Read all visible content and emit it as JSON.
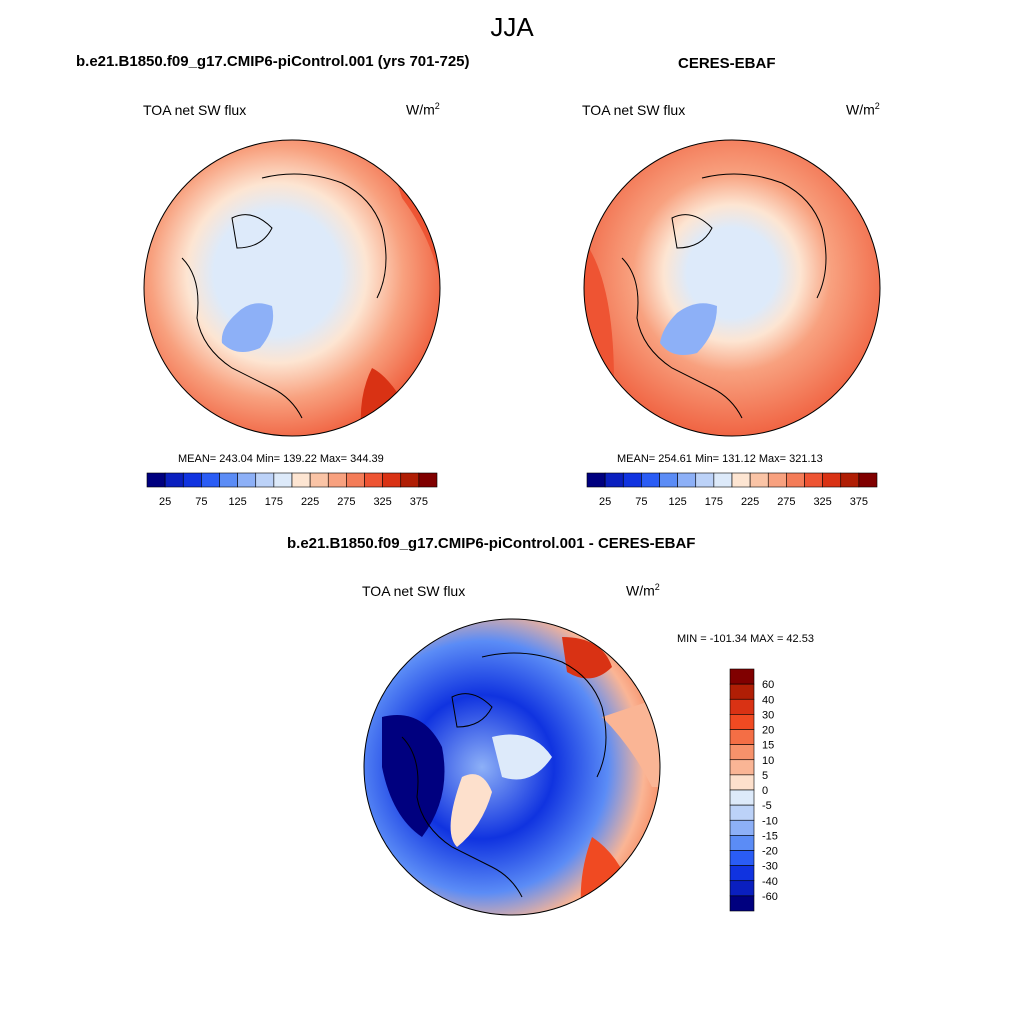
{
  "figure": {
    "title": "JJA"
  },
  "panels": [
    {
      "id": "model",
      "heading": "b.e21.B1850.f09_g17.CMIP6-piControl.001 (yrs 701-725)",
      "variable": "TOA net SW flux",
      "units_base": "W/m",
      "units_exp": "2",
      "stats": "MEAN= 243.04  Min= 139.22  Max= 344.39"
    },
    {
      "id": "obs",
      "heading": "CERES-EBAF",
      "variable": "TOA net SW flux",
      "units_base": "W/m",
      "units_exp": "2",
      "stats": "MEAN= 254.61  Min= 131.12  Max= 321.13"
    },
    {
      "id": "diff",
      "heading": "b.e21.B1850.f09_g17.CMIP6-piControl.001 - CERES-EBAF",
      "variable": "TOA net SW flux",
      "units_base": "W/m",
      "units_exp": "2",
      "stats": "MIN = -101.34 MAX =  42.53"
    }
  ],
  "colorbar_top": {
    "tick_labels": [
      "25",
      "75",
      "125",
      "175",
      "225",
      "275",
      "325",
      "375"
    ],
    "colors": [
      "#00007f",
      "#0a1fbf",
      "#1033e0",
      "#2a5cf5",
      "#5b8cf6",
      "#8db0f7",
      "#bcd2f8",
      "#ddeafa",
      "#fde5d2",
      "#fac4a6",
      "#f8a17f",
      "#f47c58",
      "#ee5433",
      "#d93214",
      "#b01e05",
      "#800000"
    ]
  },
  "colorbar_diff": {
    "tick_labels": [
      "60",
      "40",
      "30",
      "20",
      "15",
      "10",
      "5",
      "0",
      "-5",
      "-10",
      "-15",
      "-20",
      "-30",
      "-40",
      "-60"
    ],
    "colors": [
      "#800000",
      "#b01e05",
      "#d93214",
      "#f04a22",
      "#f46e45",
      "#f7926b",
      "#fab595",
      "#fde0cc",
      "#ddeafa",
      "#bcd2f8",
      "#8db0f7",
      "#5b8cf6",
      "#2a5cf5",
      "#1033e0",
      "#0a1fbf",
      "#00007f"
    ]
  }
}
